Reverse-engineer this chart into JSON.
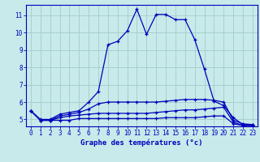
{
  "title": "Graphe des températures (°c)",
  "background_color": "#c8eaea",
  "grid_color": "#a8d0d0",
  "line_color": "#0000bb",
  "border_color": "#0000bb",
  "xlim": [
    -0.5,
    23.5
  ],
  "ylim": [
    4.6,
    11.6
  ],
  "xticks": [
    0,
    1,
    2,
    3,
    4,
    5,
    6,
    7,
    8,
    9,
    10,
    11,
    12,
    13,
    14,
    15,
    16,
    17,
    18,
    19,
    20,
    21,
    22,
    23
  ],
  "yticks": [
    5,
    6,
    7,
    8,
    9,
    10,
    11
  ],
  "series1_x": [
    0,
    1,
    2,
    3,
    4,
    5,
    6,
    7,
    8,
    9,
    10,
    11,
    12,
    13,
    14,
    15,
    16,
    17,
    18,
    19,
    20,
    21,
    22,
    23
  ],
  "series1_y": [
    5.5,
    5.0,
    5.0,
    5.3,
    5.4,
    5.5,
    6.0,
    6.6,
    9.3,
    9.5,
    10.1,
    11.35,
    9.9,
    11.05,
    11.05,
    10.75,
    10.75,
    9.6,
    7.9,
    6.05,
    5.8,
    5.1,
    4.7,
    4.7
  ],
  "series2_x": [
    0,
    1,
    2,
    3,
    4,
    5,
    6,
    7,
    8,
    9,
    10,
    11,
    12,
    13,
    14,
    15,
    16,
    17,
    18,
    19,
    20,
    21,
    22,
    23
  ],
  "series2_y": [
    5.5,
    4.95,
    4.95,
    4.95,
    4.95,
    5.05,
    5.05,
    5.05,
    5.05,
    5.05,
    5.05,
    5.05,
    5.05,
    5.05,
    5.1,
    5.1,
    5.1,
    5.1,
    5.15,
    5.2,
    5.2,
    4.75,
    4.65,
    4.65
  ],
  "series3_x": [
    0,
    1,
    2,
    3,
    4,
    5,
    6,
    7,
    8,
    9,
    10,
    11,
    12,
    13,
    14,
    15,
    16,
    17,
    18,
    19,
    20,
    21,
    22,
    23
  ],
  "series3_y": [
    5.5,
    4.95,
    4.95,
    5.1,
    5.2,
    5.25,
    5.3,
    5.35,
    5.35,
    5.35,
    5.35,
    5.35,
    5.35,
    5.4,
    5.45,
    5.5,
    5.55,
    5.55,
    5.6,
    5.65,
    5.7,
    4.85,
    4.65,
    4.65
  ],
  "series4_x": [
    0,
    1,
    2,
    3,
    4,
    5,
    6,
    7,
    8,
    9,
    10,
    11,
    12,
    13,
    14,
    15,
    16,
    17,
    18,
    19,
    20,
    21,
    22,
    23
  ],
  "series4_y": [
    5.5,
    4.95,
    4.95,
    5.2,
    5.3,
    5.4,
    5.6,
    5.9,
    6.0,
    6.0,
    6.0,
    6.0,
    6.0,
    6.0,
    6.05,
    6.1,
    6.15,
    6.15,
    6.15,
    6.1,
    6.0,
    4.95,
    4.75,
    4.7
  ],
  "xlabel_fontsize": 6.5,
  "tick_fontsize": 5.5
}
